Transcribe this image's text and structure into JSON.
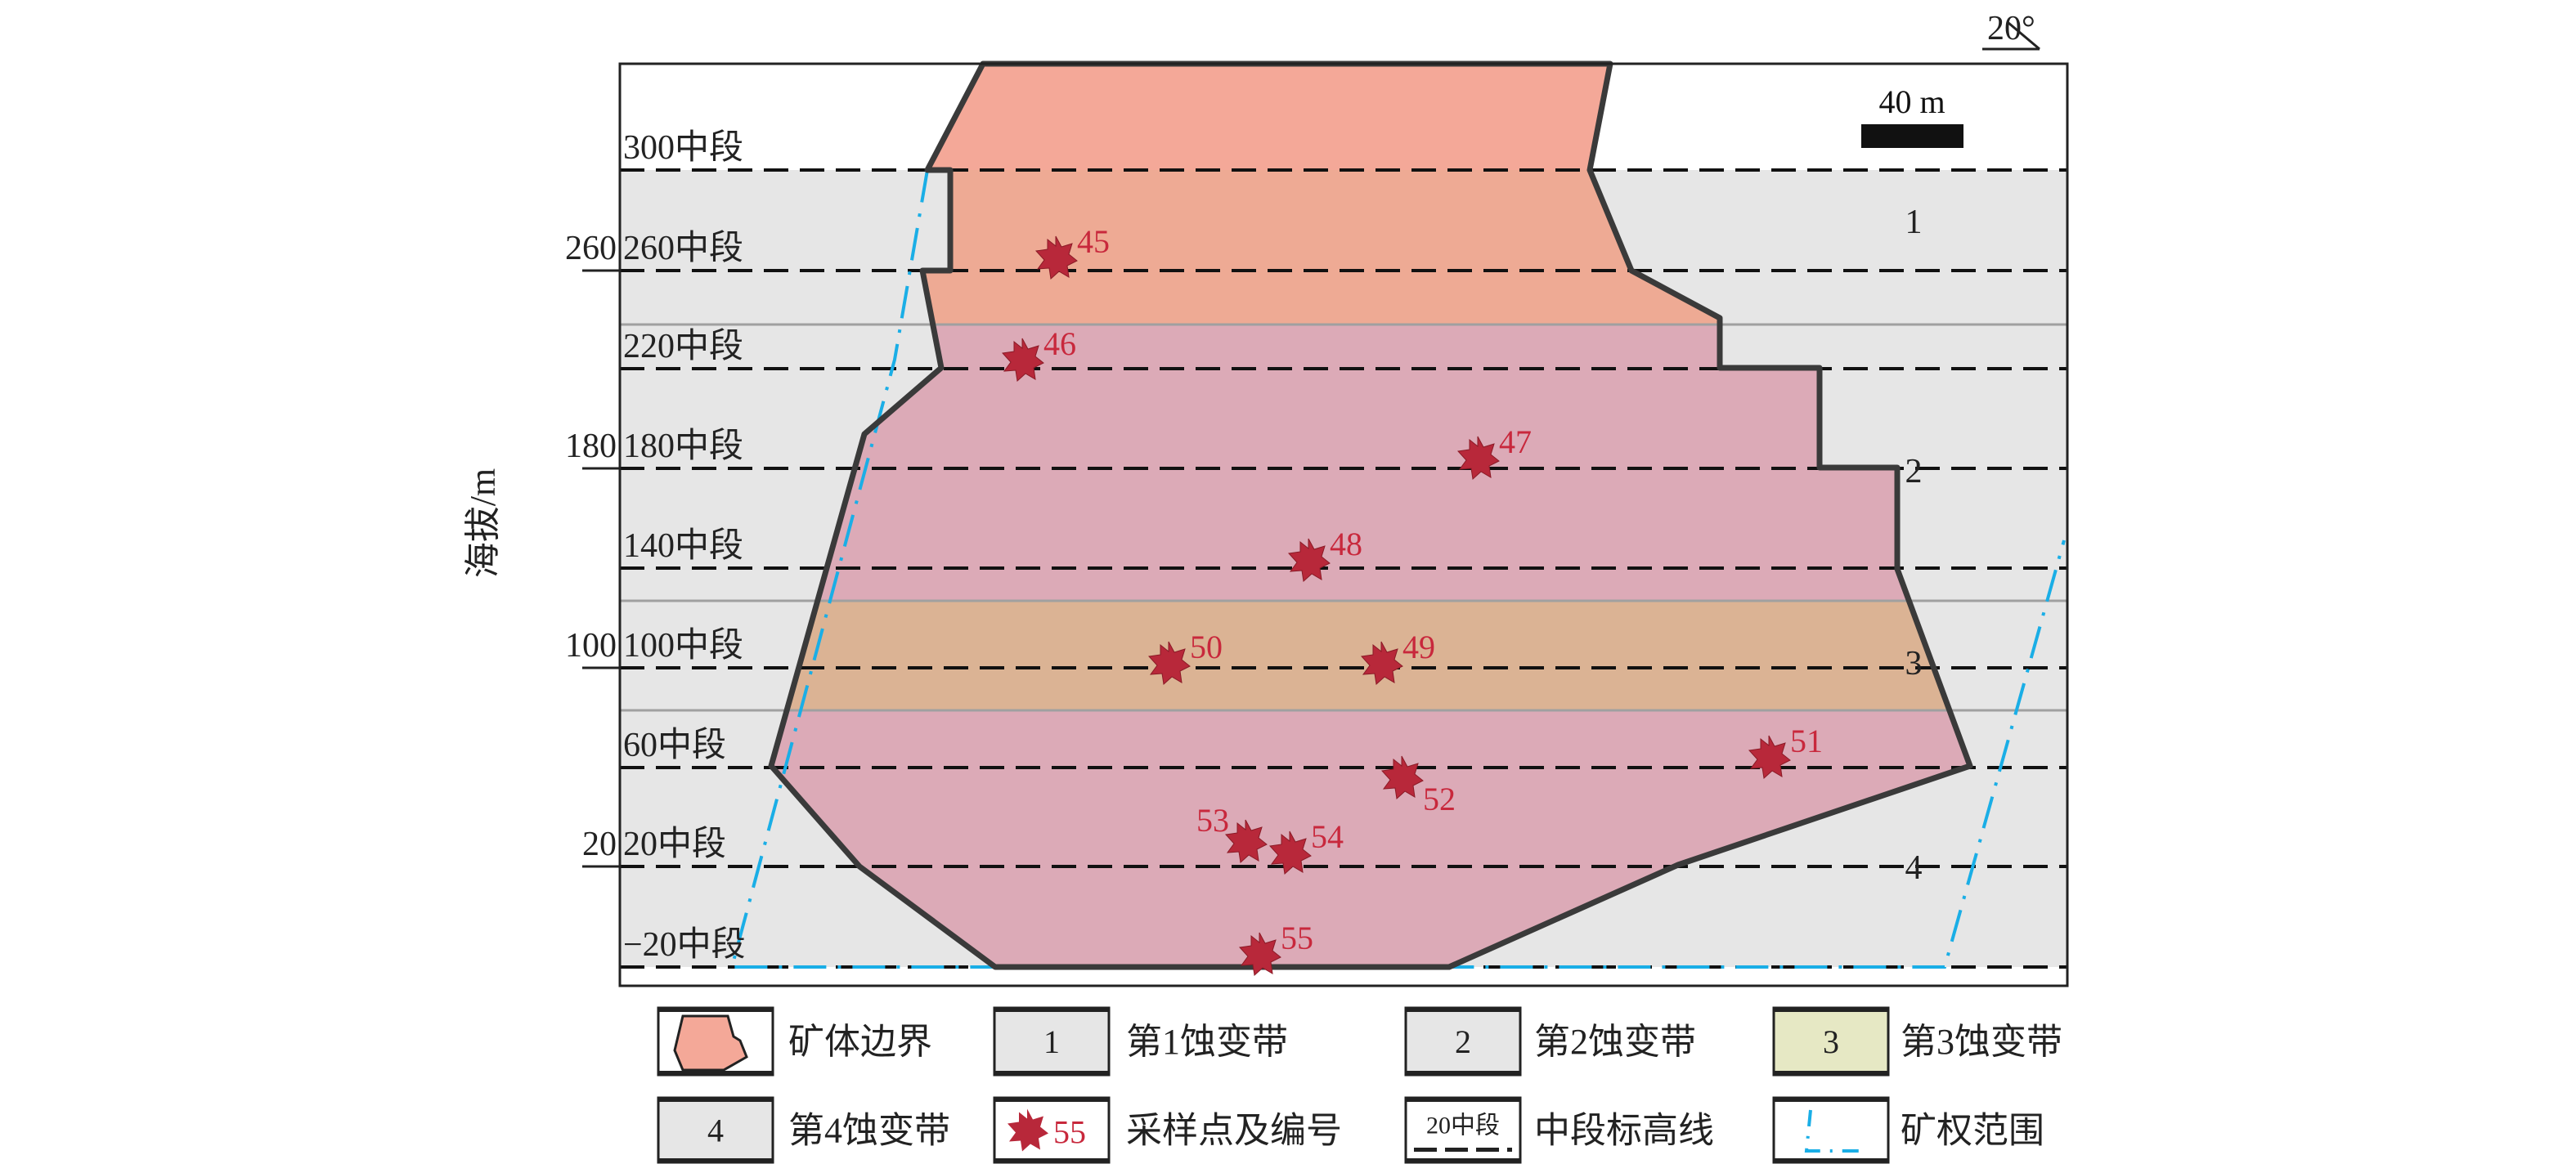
{
  "orientation": {
    "dip_label": "20°"
  },
  "scale_bar": {
    "label": "40 m"
  },
  "axis": {
    "label": "海拔/m",
    "ticks": [
      "260",
      "180",
      "100",
      "20"
    ]
  },
  "levels": [
    "300中段",
    "260中段",
    "220中段",
    "180中段",
    "140中段",
    "100中段",
    "60中段",
    "20中段",
    "−20中段"
  ],
  "zones": [
    "1",
    "2",
    "3",
    "4"
  ],
  "samples": [
    "45",
    "46",
    "47",
    "48",
    "50",
    "49",
    "51",
    "52",
    "53",
    "54",
    "55"
  ],
  "colors": {
    "ore_upper": "#f4a898",
    "ore_zone1": "#eeaa94",
    "ore_zone2": "#dcaab7",
    "ore_zone3": "#dbb394",
    "zone_bg": "#e6e6e6",
    "zone3_legend": "#e6e8c4",
    "sample_star": "#b8283a",
    "sample_label": "#c8283c",
    "mining_right": "#1aaee6"
  },
  "legend": [
    {
      "symbol": "",
      "label": "矿体边界"
    },
    {
      "symbol": "1",
      "label": "第1蚀变带"
    },
    {
      "symbol": "2",
      "label": "第2蚀变带"
    },
    {
      "symbol": "3",
      "label": "第3蚀变带"
    },
    {
      "symbol": "4",
      "label": "第4蚀变带"
    },
    {
      "symbol": "55",
      "label": "采样点及编号"
    },
    {
      "symbol": "20中段",
      "label": "中段标高线"
    },
    {
      "symbol": "",
      "label": "矿权范围"
    }
  ]
}
